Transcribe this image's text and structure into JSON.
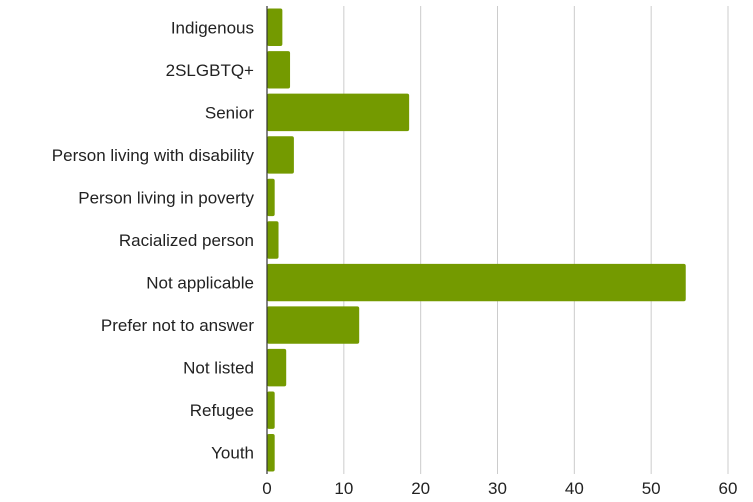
{
  "chart_data": {
    "type": "bar",
    "orientation": "horizontal",
    "categories": [
      "Indigenous",
      "2SLGBTQ+",
      "Senior",
      "Person living with disability",
      "Person living in poverty",
      "Racialized person",
      "Not applicable",
      "Prefer not to answer",
      "Not listed",
      "Refugee",
      "Youth"
    ],
    "values": [
      2,
      3,
      18.5,
      3.5,
      1,
      1.5,
      54.5,
      12,
      2.5,
      1,
      1
    ],
    "xlim": [
      0,
      60
    ],
    "xticks": [
      0,
      10,
      20,
      30,
      40,
      50,
      60
    ],
    "grid": true,
    "colors": {
      "bar": "#749a00",
      "grid": "#cccccc",
      "axis": "#333333"
    }
  }
}
